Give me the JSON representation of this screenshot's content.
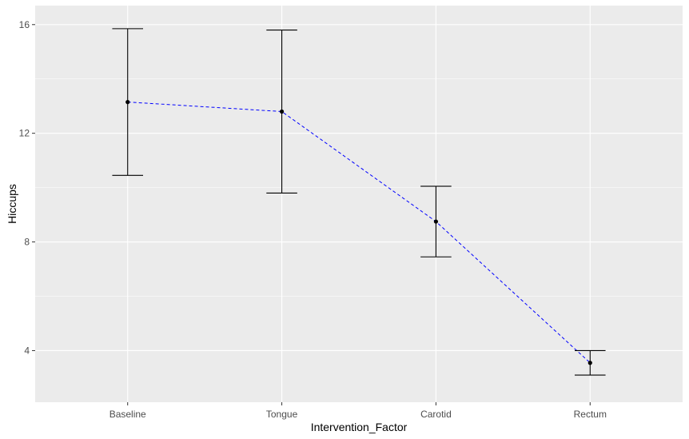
{
  "chart_data": {
    "type": "line",
    "title": "",
    "xlabel": "Intervention_Factor",
    "ylabel": "Hiccups",
    "categories": [
      "Baseline",
      "Tongue",
      "Carotid",
      "Rectum"
    ],
    "series": [
      {
        "values": [
          13.15,
          12.8,
          8.75,
          3.55
        ],
        "error_low": [
          10.45,
          9.8,
          7.45,
          3.1
        ],
        "error_high": [
          15.85,
          15.8,
          10.05,
          4.0
        ]
      }
    ],
    "line_style": "dashed",
    "line_color": "#0000ff",
    "point_color": "#000000",
    "errorbar_color": "#000000",
    "panel_background": "#ebebeb",
    "grid_color": "#ffffff",
    "grid": true,
    "ylim": [
      2.1,
      16.7
    ],
    "y_ticks": [
      4,
      8,
      12,
      16
    ],
    "y_tick_labels": [
      "4",
      "8",
      "12",
      "16"
    ],
    "legend": "none"
  }
}
